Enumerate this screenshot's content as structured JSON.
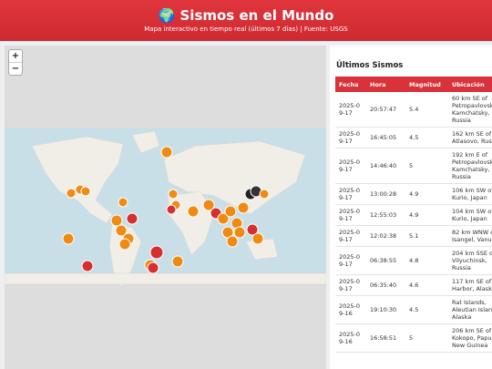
{
  "header": {
    "title": "🌍 Sismos en el Mundo",
    "subtitle": "Mapa interactivo en tiempo real (últimos 7 días) | Fuente: USGS"
  },
  "map": {
    "zoom_in": "+",
    "zoom_out": "−"
  },
  "panel": {
    "title": "Últimos Sismos"
  },
  "table": {
    "columns": [
      "Fecha",
      "Hora",
      "Magnitud",
      "Ubicación"
    ],
    "rows": [
      [
        "2025-09-17",
        "20:57:47",
        "5.4",
        "60 km SE of Petropavlovsk-Kamchatsky, Russia"
      ],
      [
        "2025-09-17",
        "16:45:05",
        "4.5",
        "162 km SE of Atlasovo, Russia"
      ],
      [
        "2025-09-17",
        "14:46:40",
        "5",
        "192 km E of Petropavlovsk-Kamchatsky, Russia"
      ],
      [
        "2025-09-17",
        "13:00:28",
        "4.9",
        "106 km SW of Kurio, Japan"
      ],
      [
        "2025-09-17",
        "12:55:03",
        "4.9",
        "104 km SW of Kurio, Japan"
      ],
      [
        "2025-09-17",
        "12:02:38",
        "5.1",
        "82 km WNW of Isangel, Vanuatu"
      ],
      [
        "2025-09-17",
        "06:38:55",
        "4.8",
        "204 km SSE of Vilyuchinsk, Russia"
      ],
      [
        "2025-09-17",
        "06:35:40",
        "4.6",
        "117 km SE of Old Harbor, Alaska"
      ],
      [
        "2025-09-16",
        "19:10:30",
        "4.5",
        "Rat Islands, Aleutian Islands, Alaska"
      ],
      [
        "2025-09-16",
        "16:58:51",
        "5",
        "206 km SE of Kokopo, Papua New Guinea"
      ]
    ]
  }
}
